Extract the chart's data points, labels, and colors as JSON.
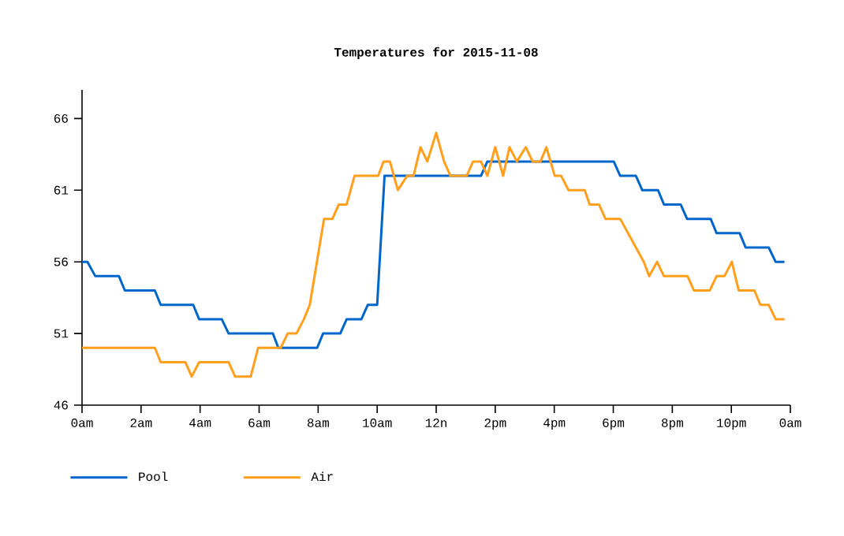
{
  "chart_data": {
    "type": "line",
    "title": "Temperatures for 2015-11-08",
    "xlim": [
      "2015-11-08T00:00",
      "2015-11-09T00:00"
    ],
    "ylim": [
      46,
      68
    ],
    "xticks": [
      {
        "value": "2015-11-08T00:00",
        "label": "0am"
      },
      {
        "value": "2015-11-08T02:00",
        "label": "2am"
      },
      {
        "value": "2015-11-08T04:00",
        "label": "4am"
      },
      {
        "value": "2015-11-08T06:00",
        "label": "6am"
      },
      {
        "value": "2015-11-08T08:00",
        "label": "8am"
      },
      {
        "value": "2015-11-08T10:00",
        "label": "10am"
      },
      {
        "value": "2015-11-08T12:00",
        "label": "12n"
      },
      {
        "value": "2015-11-08T14:00",
        "label": "2pm"
      },
      {
        "value": "2015-11-08T16:00",
        "label": "4pm"
      },
      {
        "value": "2015-11-08T18:00",
        "label": "6pm"
      },
      {
        "value": "2015-11-08T20:00",
        "label": "8pm"
      },
      {
        "value": "2015-11-08T22:00",
        "label": "10pm"
      },
      {
        "value": "2015-11-09T00:00",
        "label": "0am"
      }
    ],
    "yticks": [
      46,
      51,
      56,
      61,
      66
    ],
    "grid": false,
    "legend": "bottom left",
    "series": [
      {
        "name": "Pool",
        "color": "#0066cc",
        "x": [
          "2015-11-08T00:00",
          "2015-11-08T00:11",
          "2015-11-08T00:27",
          "2015-11-08T01:15",
          "2015-11-08T01:27",
          "2015-11-08T02:28",
          "2015-11-08T02:40",
          "2015-11-08T03:46",
          "2015-11-08T03:58",
          "2015-11-08T04:44",
          "2015-11-08T04:58",
          "2015-11-08T06:28",
          "2015-11-08T06:39",
          "2015-11-08T07:58",
          "2015-11-08T08:10",
          "2015-11-08T08:45",
          "2015-11-08T08:58",
          "2015-11-08T09:28",
          "2015-11-08T09:41",
          "2015-11-08T10:00",
          "2015-11-08T10:15",
          "2015-11-08T13:31",
          "2015-11-08T13:44",
          "2015-11-08T18:01",
          "2015-11-08T18:14",
          "2015-11-08T18:46",
          "2015-11-08T18:59",
          "2015-11-08T19:31",
          "2015-11-08T19:43",
          "2015-11-08T20:17",
          "2015-11-08T20:30",
          "2015-11-08T21:18",
          "2015-11-08T21:30",
          "2015-11-08T22:17",
          "2015-11-08T22:29",
          "2015-11-08T23:16",
          "2015-11-08T23:30",
          "2015-11-08T23:48"
        ],
        "values": [
          56,
          56,
          55,
          55,
          54,
          54,
          53,
          53,
          52,
          52,
          51,
          51,
          50,
          50,
          51,
          51,
          52,
          52,
          53,
          53,
          62,
          62,
          63,
          63,
          62,
          62,
          61,
          61,
          60,
          60,
          59,
          59,
          58,
          58,
          57,
          57,
          56,
          56
        ]
      },
      {
        "name": "Air",
        "color": "#ff9f1c",
        "x": [
          "2015-11-08T00:00",
          "2015-11-08T02:28",
          "2015-11-08T02:40",
          "2015-11-08T03:30",
          "2015-11-08T03:43",
          "2015-11-08T03:58",
          "2015-11-08T04:58",
          "2015-11-08T05:11",
          "2015-11-08T05:43",
          "2015-11-08T05:58",
          "2015-11-08T06:44",
          "2015-11-08T06:58",
          "2015-11-08T07:16",
          "2015-11-08T07:31",
          "2015-11-08T07:43",
          "2015-11-08T08:12",
          "2015-11-08T08:29",
          "2015-11-08T08:42",
          "2015-11-08T08:58",
          "2015-11-08T09:14",
          "2015-11-08T10:02",
          "2015-11-08T10:13",
          "2015-11-08T10:26",
          "2015-11-08T10:42",
          "2015-11-08T11:01",
          "2015-11-08T11:14",
          "2015-11-08T11:28",
          "2015-11-08T11:42",
          "2015-11-08T12:00",
          "2015-11-08T12:16",
          "2015-11-08T12:29",
          "2015-11-08T13:02",
          "2015-11-08T13:15",
          "2015-11-08T13:31",
          "2015-11-08T13:44",
          "2015-11-08T14:00",
          "2015-11-08T14:16",
          "2015-11-08T14:29",
          "2015-11-08T14:44",
          "2015-11-08T15:02",
          "2015-11-08T15:16",
          "2015-11-08T15:32",
          "2015-11-08T15:44",
          "2015-11-08T16:01",
          "2015-11-08T16:14",
          "2015-11-08T16:29",
          "2015-11-08T17:02",
          "2015-11-08T17:12",
          "2015-11-08T17:31",
          "2015-11-08T17:44",
          "2015-11-08T18:14",
          "2015-11-08T18:30",
          "2015-11-08T18:46",
          "2015-11-08T19:02",
          "2015-11-08T19:13",
          "2015-11-08T19:29",
          "2015-11-08T19:43",
          "2015-11-08T20:31",
          "2015-11-08T20:44",
          "2015-11-08T21:16",
          "2015-11-08T21:30",
          "2015-11-08T21:46",
          "2015-11-08T22:01",
          "2015-11-08T22:15",
          "2015-11-08T22:47",
          "2015-11-08T22:59",
          "2015-11-08T23:16",
          "2015-11-08T23:30",
          "2015-11-08T23:48"
        ],
        "values": [
          50,
          50,
          49,
          49,
          48,
          49,
          49,
          48,
          48,
          50,
          50,
          51,
          51,
          52,
          53,
          59,
          59,
          60,
          60,
          62,
          62,
          63,
          63,
          61,
          62,
          62,
          64,
          63,
          65,
          63,
          62,
          62,
          63,
          63,
          62,
          64,
          62,
          64,
          63,
          64,
          63,
          63,
          64,
          62,
          62,
          61,
          61,
          60,
          60,
          59,
          59,
          58,
          57,
          56,
          55,
          56,
          55,
          55,
          54,
          54,
          55,
          55,
          56,
          54,
          54,
          53,
          53,
          52,
          52
        ]
      }
    ]
  }
}
